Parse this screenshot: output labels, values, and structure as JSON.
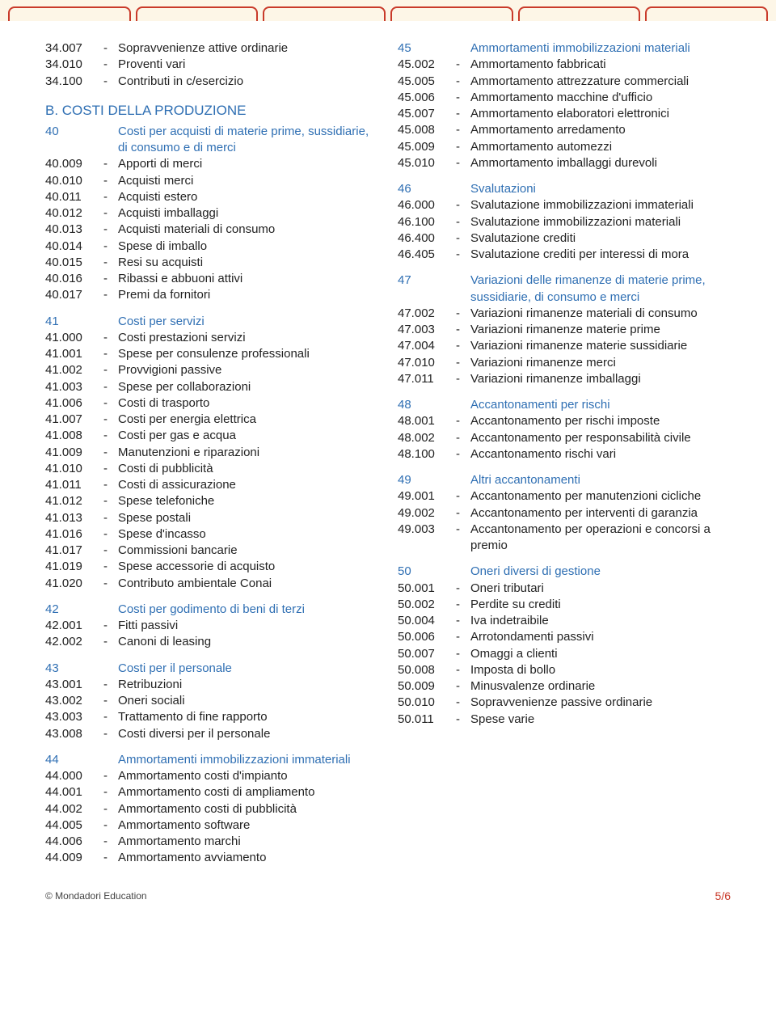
{
  "tabs_count": 6,
  "section_b": "B. COSTI DELLA PRODUZIONE",
  "left": [
    {
      "c": "34.007",
      "d": "-",
      "l": "Sopravvenienze attive ordinarie"
    },
    {
      "c": "34.010",
      "d": "-",
      "l": "Proventi vari"
    },
    {
      "c": "34.100",
      "d": "-",
      "l": "Contributi in c/esercizio"
    },
    {
      "type": "section_b"
    },
    {
      "c": "40",
      "d": "",
      "l": "Costi per acquisti di materie prime, sussidiarie, di consumo e di merci",
      "h": true
    },
    {
      "c": "40.009",
      "d": "-",
      "l": "Apporti di merci"
    },
    {
      "c": "40.010",
      "d": "-",
      "l": "Acquisti merci"
    },
    {
      "c": "40.011",
      "d": "-",
      "l": "Acquisti estero"
    },
    {
      "c": "40.012",
      "d": "-",
      "l": "Acquisti imballaggi"
    },
    {
      "c": "40.013",
      "d": "-",
      "l": "Acquisti materiali di consumo"
    },
    {
      "c": "40.014",
      "d": "-",
      "l": "Spese di imballo"
    },
    {
      "c": "40.015",
      "d": "-",
      "l": "Resi su acquisti"
    },
    {
      "c": "40.016",
      "d": "-",
      "l": "Ribassi e abbuoni attivi"
    },
    {
      "c": "40.017",
      "d": "-",
      "l": "Premi da fornitori"
    },
    {
      "type": "spacer"
    },
    {
      "c": "41",
      "d": "",
      "l": "Costi per servizi",
      "h": true
    },
    {
      "c": "41.000",
      "d": "-",
      "l": "Costi prestazioni servizi"
    },
    {
      "c": "41.001",
      "d": "-",
      "l": "Spese per consulenze professionali"
    },
    {
      "c": "41.002",
      "d": "-",
      "l": "Provvigioni passive"
    },
    {
      "c": "41.003",
      "d": "-",
      "l": "Spese per collaborazioni"
    },
    {
      "c": "41.006",
      "d": "-",
      "l": "Costi di trasporto"
    },
    {
      "c": "41.007",
      "d": "-",
      "l": "Costi per energia elettrica"
    },
    {
      "c": "41.008",
      "d": "-",
      "l": "Costi per gas e acqua"
    },
    {
      "c": "41.009",
      "d": "-",
      "l": "Manutenzioni e riparazioni"
    },
    {
      "c": "41.010",
      "d": "-",
      "l": "Costi di pubblicità"
    },
    {
      "c": "41.011",
      "d": "-",
      "l": "Costi di assicurazione"
    },
    {
      "c": "41.012",
      "d": "-",
      "l": "Spese telefoniche"
    },
    {
      "c": "41.013",
      "d": "-",
      "l": "Spese postali"
    },
    {
      "c": "41.016",
      "d": "-",
      "l": "Spese d'incasso"
    },
    {
      "c": "41.017",
      "d": "-",
      "l": "Commissioni bancarie"
    },
    {
      "c": "41.019",
      "d": "-",
      "l": "Spese accessorie di acquisto"
    },
    {
      "c": "41.020",
      "d": "-",
      "l": "Contributo ambientale Conai"
    },
    {
      "type": "spacer"
    },
    {
      "c": "42",
      "d": "",
      "l": "Costi per godimento di beni di terzi",
      "h": true
    },
    {
      "c": "42.001",
      "d": "-",
      "l": "Fitti passivi"
    },
    {
      "c": "42.002",
      "d": "-",
      "l": "Canoni di leasing"
    },
    {
      "type": "spacer"
    },
    {
      "c": "43",
      "d": "",
      "l": "Costi per il personale",
      "h": true
    },
    {
      "c": "43.001",
      "d": "-",
      "l": "Retribuzioni"
    },
    {
      "c": "43.002",
      "d": "-",
      "l": "Oneri sociali"
    },
    {
      "c": "43.003",
      "d": "-",
      "l": "Trattamento di fine rapporto"
    },
    {
      "c": "43.008",
      "d": "-",
      "l": "Costi diversi per il personale"
    },
    {
      "type": "spacer"
    },
    {
      "c": "44",
      "d": "",
      "l": "Ammortamenti immobilizzazioni immateriali",
      "h": true
    },
    {
      "c": "44.000",
      "d": "-",
      "l": "Ammortamento costi d'impianto"
    },
    {
      "c": "44.001",
      "d": "-",
      "l": "Ammortamento costi di ampliamento"
    },
    {
      "c": "44.002",
      "d": "-",
      "l": "Ammortamento costi di pubblicità"
    },
    {
      "c": "44.005",
      "d": "-",
      "l": "Ammortamento software"
    },
    {
      "c": "44.006",
      "d": "-",
      "l": "Ammortamento marchi"
    },
    {
      "c": "44.009",
      "d": "-",
      "l": "Ammortamento avviamento"
    }
  ],
  "right": [
    {
      "c": "45",
      "d": "",
      "l": "Ammortamenti immobilizzazioni materiali",
      "h": true
    },
    {
      "c": "45.002",
      "d": "-",
      "l": "Ammortamento fabbricati"
    },
    {
      "c": "45.005",
      "d": "-",
      "l": "Ammortamento attrezzature commerciali"
    },
    {
      "c": "45.006",
      "d": "-",
      "l": "Ammortamento macchine d'ufficio"
    },
    {
      "c": "45.007",
      "d": "-",
      "l": "Ammortamento elaboratori elettronici"
    },
    {
      "c": "45.008",
      "d": "-",
      "l": "Ammortamento arredamento"
    },
    {
      "c": "45.009",
      "d": "-",
      "l": "Ammortamento automezzi"
    },
    {
      "c": "45.010",
      "d": "-",
      "l": "Ammortamento imballaggi durevoli"
    },
    {
      "type": "spacer"
    },
    {
      "c": "46",
      "d": "",
      "l": "Svalutazioni",
      "h": true
    },
    {
      "c": "46.000",
      "d": "-",
      "l": "Svalutazione immobilizzazioni immateriali"
    },
    {
      "c": "46.100",
      "d": "-",
      "l": "Svalutazione immobilizzazioni materiali"
    },
    {
      "c": "46.400",
      "d": "-",
      "l": "Svalutazione crediti"
    },
    {
      "c": "46.405",
      "d": "-",
      "l": "Svalutazione crediti per interessi di mora"
    },
    {
      "type": "spacer"
    },
    {
      "c": "47",
      "d": "",
      "l": "Variazioni delle rimanenze di materie prime, sussidiarie, di consumo e merci",
      "h": true
    },
    {
      "c": "47.002",
      "d": "-",
      "l": "Variazioni rimanenze materiali di consumo"
    },
    {
      "c": "47.003",
      "d": "-",
      "l": "Variazioni rimanenze materie prime"
    },
    {
      "c": "47.004",
      "d": "-",
      "l": "Variazioni rimanenze materie sussidiarie"
    },
    {
      "c": "47.010",
      "d": "-",
      "l": "Variazioni rimanenze merci"
    },
    {
      "c": "47.011",
      "d": "-",
      "l": "Variazioni rimanenze imballaggi"
    },
    {
      "type": "spacer"
    },
    {
      "c": "48",
      "d": "",
      "l": "Accantonamenti per rischi",
      "h": true
    },
    {
      "c": "48.001",
      "d": "-",
      "l": "Accantonamento per rischi imposte"
    },
    {
      "c": "48.002",
      "d": "-",
      "l": "Accantonamento per responsabilità civile"
    },
    {
      "c": "48.100",
      "d": "-",
      "l": "Accantonamento rischi vari"
    },
    {
      "type": "spacer"
    },
    {
      "c": "49",
      "d": "",
      "l": "Altri accantonamenti",
      "h": true
    },
    {
      "c": "49.001",
      "d": "-",
      "l": "Accantonamento per manutenzioni cicliche"
    },
    {
      "c": "49.002",
      "d": "-",
      "l": "Accantonamento per interventi di garanzia"
    },
    {
      "c": "49.003",
      "d": "-",
      "l": "Accantonamento per operazioni e concorsi a premio"
    },
    {
      "type": "spacer"
    },
    {
      "c": "50",
      "d": "",
      "l": "Oneri diversi di gestione",
      "h": true
    },
    {
      "c": "50.001",
      "d": "-",
      "l": "Oneri tributari"
    },
    {
      "c": "50.002",
      "d": "-",
      "l": "Perdite su crediti"
    },
    {
      "c": "50.004",
      "d": "-",
      "l": "Iva indetraibile"
    },
    {
      "c": "50.006",
      "d": "-",
      "l": "Arrotondamenti passivi"
    },
    {
      "c": "50.007",
      "d": "-",
      "l": "Omaggi a clienti"
    },
    {
      "c": "50.008",
      "d": "-",
      "l": "Imposta di bollo"
    },
    {
      "c": "50.009",
      "d": "-",
      "l": "Minusvalenze ordinarie"
    },
    {
      "c": "50.010",
      "d": "-",
      "l": "Sopravvenienze passive ordinarie"
    },
    {
      "c": "50.011",
      "d": "-",
      "l": "Spese varie"
    }
  ],
  "footer": {
    "copyright": "© Mondadori Education",
    "page": "5/6"
  }
}
